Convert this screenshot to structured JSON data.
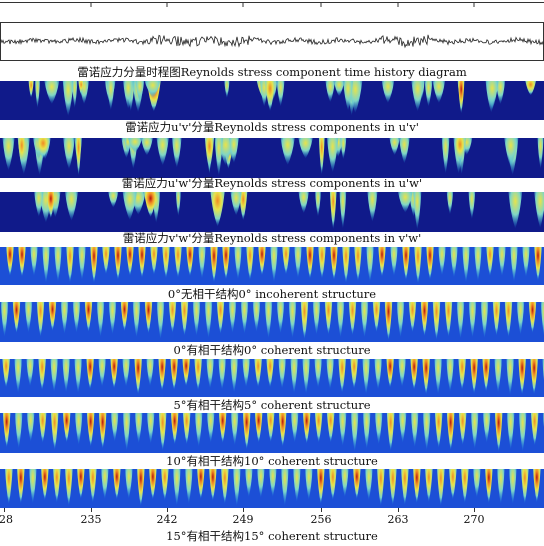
{
  "panels": [
    {
      "id": "p1",
      "caption": "雷诺应力分量时程图Reynolds stress component time history diagram",
      "style": "sparse",
      "seed": 11
    },
    {
      "id": "p2",
      "caption": "雷诺应力u'v'分量Reynolds stress components in u'v'",
      "style": "sparse",
      "seed": 23
    },
    {
      "id": "p3",
      "caption": "雷诺应力u'w'分量Reynolds stress components in u'w'",
      "style": "sparser",
      "seed": 37
    },
    {
      "id": "p4",
      "caption": "雷诺应力v'w'分量Reynolds stress components in v'w'",
      "style": "periodic",
      "seed": 41
    },
    {
      "id": "p5",
      "caption": "0°无相干结构0° incoherent structure",
      "style": "periodic",
      "seed": 53
    },
    {
      "id": "p6",
      "caption": "0°有相干结构0° coherent structure",
      "style": "periodic",
      "seed": 67
    },
    {
      "id": "p7",
      "caption": "5°有相干结构5° coherent structure",
      "style": "periodic",
      "seed": 79
    },
    {
      "id": "p8",
      "caption": "10°有相干结构10° coherent structure",
      "style": "periodic",
      "seed": 83
    }
  ],
  "last_caption": "15°有相干结构15° coherent structure",
  "x_axis": {
    "ticks": [
      "28",
      "235",
      "242",
      "249",
      "256",
      "263",
      "270"
    ]
  },
  "colormap": [
    "#000080",
    "#0a3fd0",
    "#1fa0e6",
    "#7fd6c6",
    "#e8e34a",
    "#f08a24",
    "#b01010"
  ]
}
